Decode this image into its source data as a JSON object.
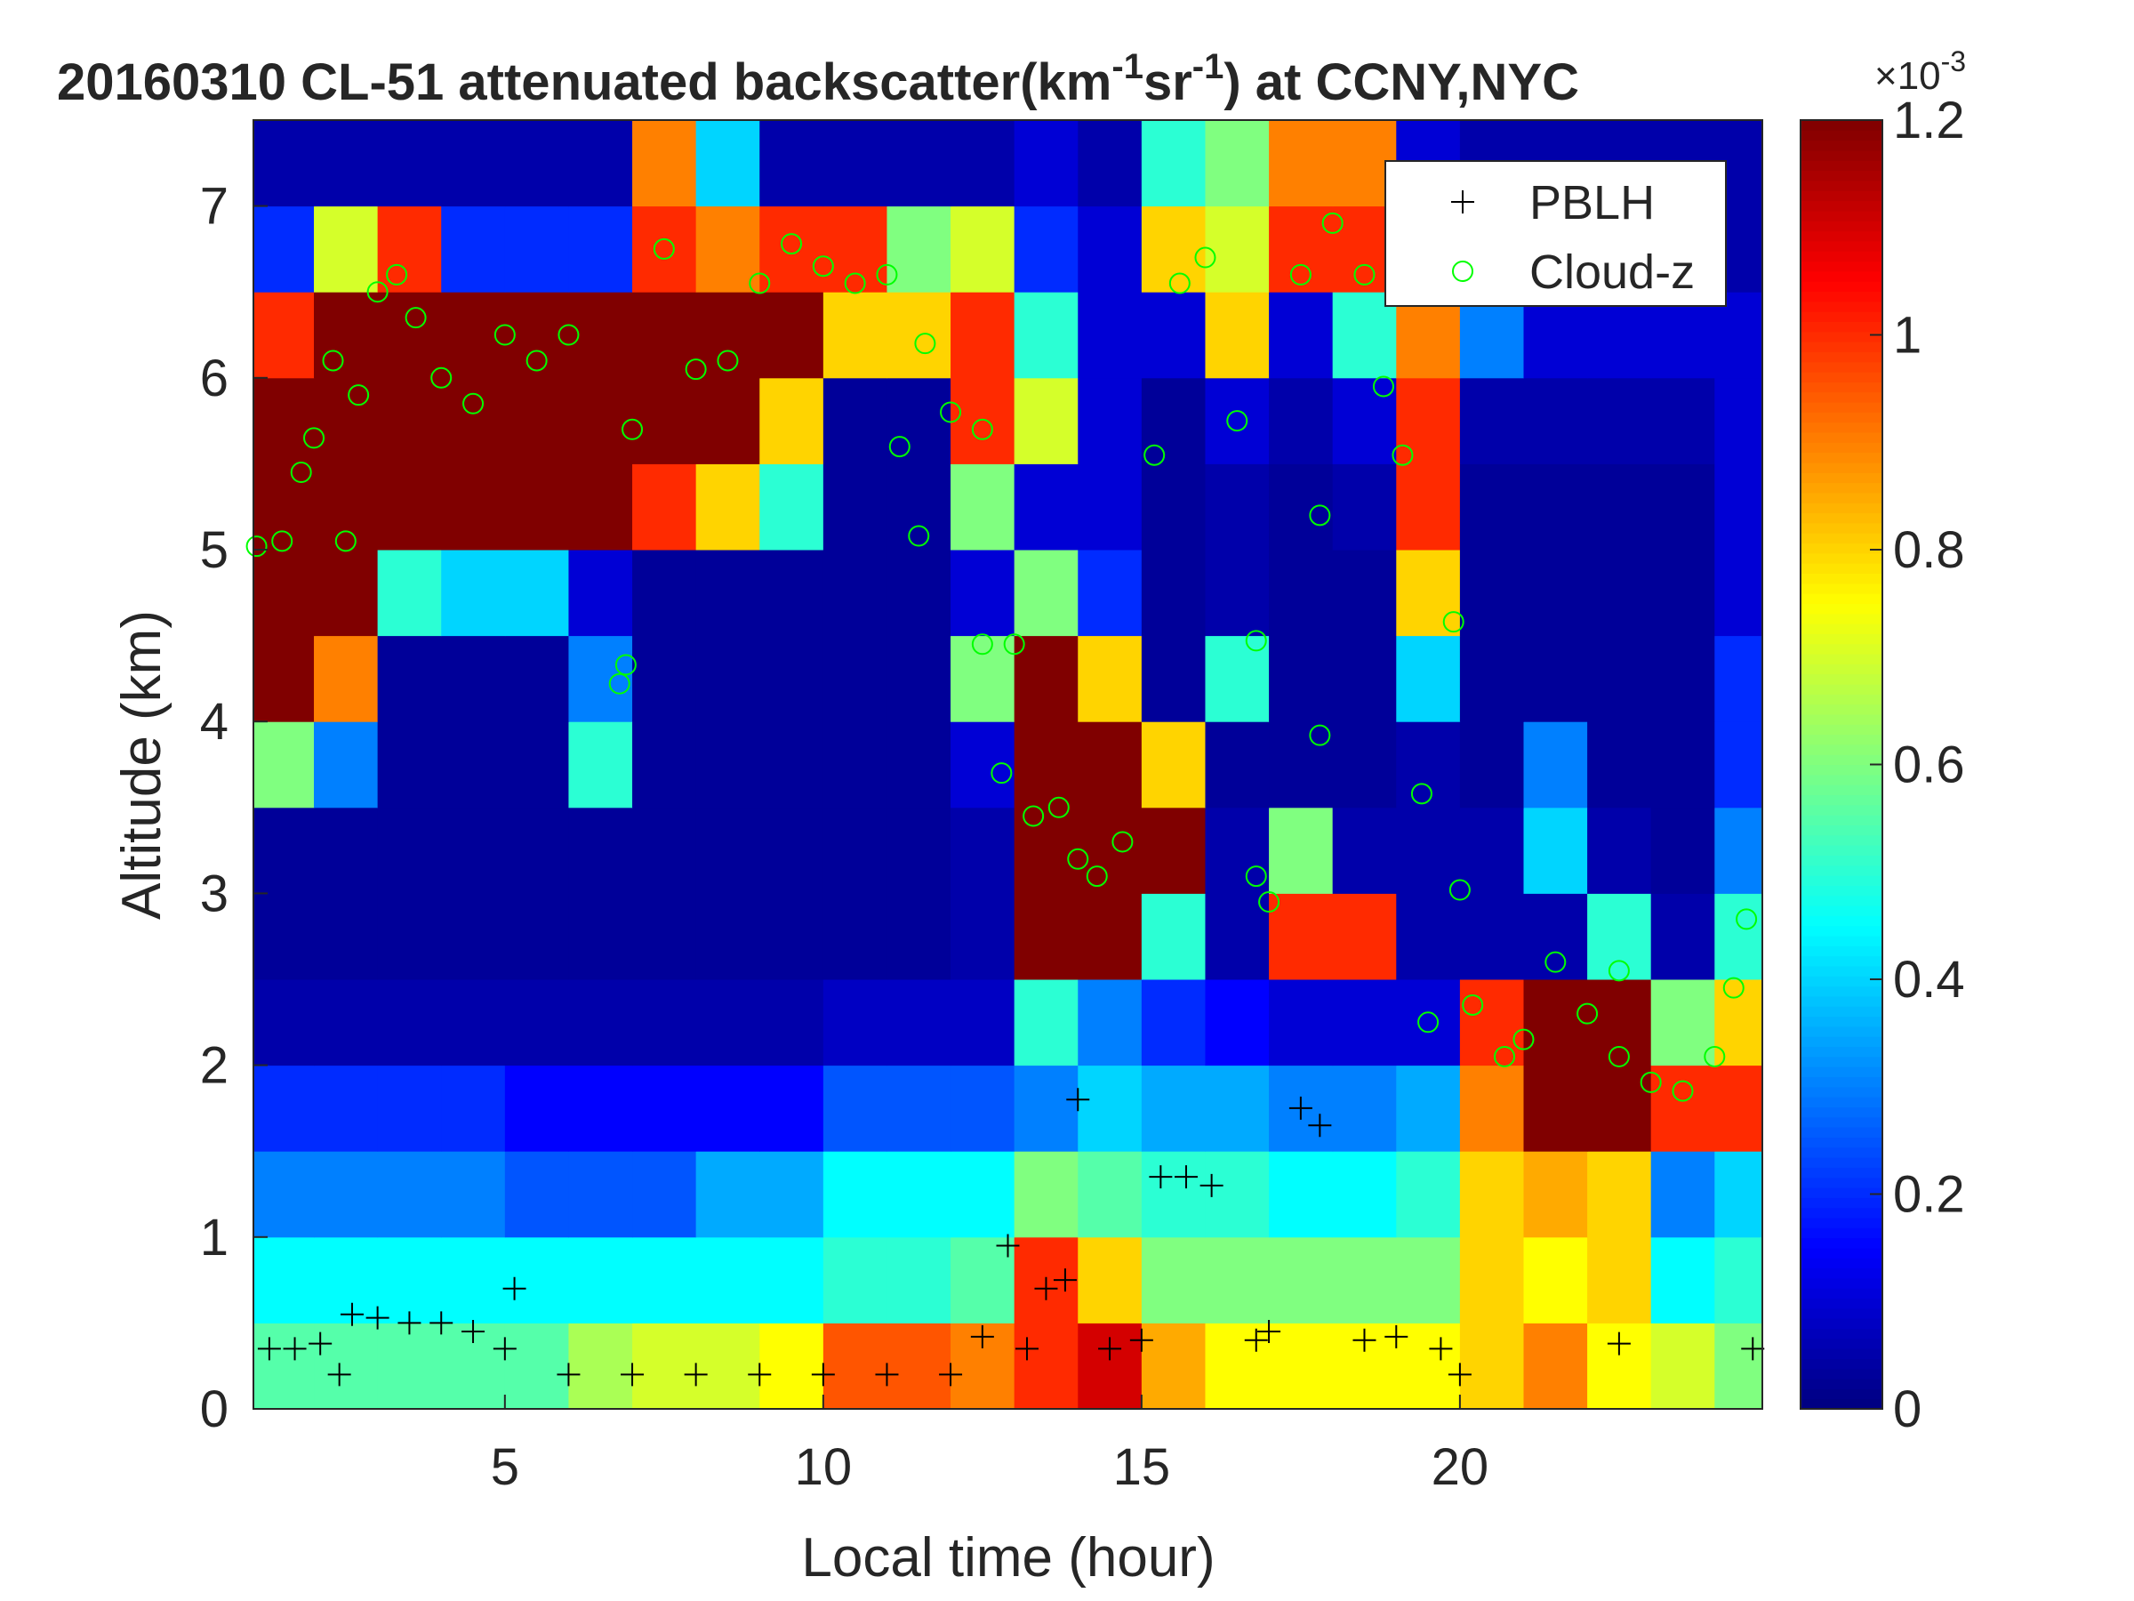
{
  "chart_data": {
    "type": "heatmap",
    "title": [
      "20160310  CL-51 attenuated backscatter(km",
      "-1",
      "sr",
      "-1",
      ") at CCNY,NYC"
    ],
    "xlabel": "Local time (hour)",
    "ylabel": "Altitude (km)",
    "xlim": [
      1.05,
      24.75
    ],
    "xticks": [
      5,
      10,
      15,
      20
    ],
    "ylim": [
      0,
      7.5
    ],
    "yticks": [
      0,
      1,
      2,
      3,
      4,
      5,
      6,
      7
    ],
    "colormap": "jet",
    "clim": [
      0,
      1.2
    ],
    "cticks": [
      0,
      0.2,
      0.4,
      0.6,
      0.8,
      1,
      1.2
    ],
    "colorbar_label": [
      "×10",
      "-3"
    ],
    "legend": "upper right",
    "x": [
      1.5,
      2.5,
      3.5,
      4.5,
      5.5,
      6.5,
      7.5,
      8.5,
      9.5,
      10.5,
      11.5,
      12.5,
      13.5,
      14.5,
      15.5,
      16.5,
      17.5,
      18.5,
      19.5,
      20.5,
      21.5,
      22.5,
      23.5,
      24.5
    ],
    "y": [
      0.25,
      0.75,
      1.25,
      1.75,
      2.25,
      2.75,
      3.25,
      3.75,
      4.25,
      4.75,
      5.25,
      5.75,
      6.25,
      6.75,
      7.25
    ],
    "z": [
      [
        0.55,
        0.55,
        0.55,
        0.55,
        0.55,
        0.65,
        0.7,
        0.7,
        0.75,
        0.95,
        0.95,
        0.9,
        1.0,
        1.1,
        0.85,
        0.75,
        0.75,
        0.75,
        0.75,
        0.8,
        0.9,
        0.75,
        0.7,
        0.6
      ],
      [
        0.45,
        0.45,
        0.45,
        0.45,
        0.45,
        0.45,
        0.45,
        0.45,
        0.45,
        0.5,
        0.5,
        0.55,
        1.0,
        0.8,
        0.6,
        0.6,
        0.6,
        0.6,
        0.6,
        0.8,
        0.75,
        0.8,
        0.45,
        0.5
      ],
      [
        0.3,
        0.3,
        0.3,
        0.3,
        0.25,
        0.25,
        0.25,
        0.35,
        0.35,
        0.45,
        0.45,
        0.45,
        0.6,
        0.55,
        0.5,
        0.5,
        0.45,
        0.45,
        0.5,
        0.8,
        0.85,
        0.8,
        0.3,
        0.4
      ],
      [
        0.2,
        0.2,
        0.2,
        0.2,
        0.15,
        0.15,
        0.15,
        0.15,
        0.15,
        0.25,
        0.25,
        0.25,
        0.3,
        0.4,
        0.35,
        0.35,
        0.3,
        0.3,
        0.35,
        0.9,
        1.2,
        1.2,
        1.0,
        1.0
      ],
      [
        0.05,
        0.05,
        0.05,
        0.05,
        0.05,
        0.05,
        0.05,
        0.05,
        0.05,
        0.08,
        0.08,
        0.08,
        0.5,
        0.3,
        0.2,
        0.15,
        0.1,
        0.1,
        0.1,
        1.0,
        1.2,
        1.2,
        0.6,
        0.8
      ],
      [
        0.03,
        0.03,
        0.03,
        0.03,
        0.03,
        0.03,
        0.03,
        0.03,
        0.03,
        0.03,
        0.03,
        0.05,
        1.2,
        1.2,
        0.5,
        0.05,
        1.0,
        1.0,
        0.05,
        0.05,
        0.05,
        0.5,
        0.05,
        0.5
      ],
      [
        0.03,
        0.03,
        0.03,
        0.03,
        0.03,
        0.03,
        0.03,
        0.03,
        0.03,
        0.03,
        0.03,
        0.05,
        1.2,
        1.2,
        1.2,
        0.05,
        0.6,
        0.05,
        0.05,
        0.05,
        0.4,
        0.05,
        0.03,
        0.3
      ],
      [
        0.6,
        0.3,
        0.03,
        0.03,
        0.03,
        0.5,
        0.03,
        0.03,
        0.03,
        0.03,
        0.03,
        0.1,
        1.2,
        1.2,
        0.8,
        0.03,
        0.03,
        0.03,
        0.05,
        0.03,
        0.3,
        0.03,
        0.03,
        0.2
      ],
      [
        1.2,
        0.9,
        0.03,
        0.03,
        0.03,
        0.3,
        0.03,
        0.03,
        0.03,
        0.03,
        0.03,
        0.6,
        1.2,
        0.8,
        0.03,
        0.5,
        0.03,
        0.03,
        0.4,
        0.03,
        0.03,
        0.03,
        0.03,
        0.2
      ],
      [
        1.2,
        1.2,
        0.5,
        0.4,
        0.4,
        0.1,
        0.03,
        0.03,
        0.03,
        0.03,
        0.03,
        0.1,
        0.6,
        0.2,
        0.03,
        0.05,
        0.03,
        0.03,
        0.8,
        0.03,
        0.03,
        0.03,
        0.03,
        0.1
      ],
      [
        1.2,
        1.2,
        1.2,
        1.2,
        1.2,
        1.2,
        1.0,
        0.8,
        0.5,
        0.03,
        0.03,
        0.6,
        0.1,
        0.1,
        0.03,
        0.05,
        0.03,
        0.05,
        1.0,
        0.03,
        0.03,
        0.03,
        0.03,
        0.1
      ],
      [
        1.2,
        1.2,
        1.2,
        1.2,
        1.2,
        1.2,
        1.2,
        1.2,
        0.8,
        0.03,
        0.03,
        1.0,
        0.7,
        0.1,
        0.03,
        0.1,
        0.05,
        0.1,
        1.0,
        0.05,
        0.05,
        0.05,
        0.05,
        0.1
      ],
      [
        1.0,
        1.2,
        1.2,
        1.2,
        1.2,
        1.2,
        1.2,
        1.2,
        1.2,
        0.8,
        0.8,
        1.0,
        0.5,
        0.1,
        0.1,
        0.8,
        0.1,
        0.5,
        0.9,
        0.3,
        0.1,
        0.1,
        0.1,
        0.1
      ],
      [
        0.2,
        0.7,
        1.0,
        0.2,
        0.2,
        0.2,
        1.0,
        0.9,
        1.0,
        1.0,
        0.6,
        0.7,
        0.2,
        0.1,
        0.8,
        0.7,
        1.0,
        1.0,
        0.3,
        0.05,
        0.05,
        0.05,
        0.05,
        0.05
      ],
      [
        0.05,
        0.05,
        0.05,
        0.05,
        0.05,
        0.05,
        0.9,
        0.4,
        0.05,
        0.05,
        0.05,
        0.05,
        0.1,
        0.05,
        0.5,
        0.6,
        0.9,
        0.9,
        0.1,
        0.05,
        0.05,
        0.05,
        0.05,
        0.05
      ]
    ],
    "series": [
      {
        "name": "PBLH",
        "color": "#000000",
        "marker": "plus",
        "x": [
          1.3,
          1.7,
          2.1,
          2.4,
          2.6,
          3,
          3.5,
          4,
          4.5,
          5,
          5.15,
          6,
          7,
          8,
          9,
          10,
          11,
          12,
          12.5,
          12.9,
          13.2,
          13.5,
          13.8,
          14,
          14.5,
          15,
          15.3,
          15.7,
          16.1,
          16.8,
          17,
          17.5,
          17.8,
          18.5,
          19,
          19.7,
          20,
          22.5,
          24.6
        ],
        "y": [
          0.35,
          0.35,
          0.38,
          0.2,
          0.55,
          0.53,
          0.5,
          0.5,
          0.45,
          0.35,
          0.7,
          0.2,
          0.2,
          0.2,
          0.2,
          0.2,
          0.2,
          0.2,
          0.42,
          0.95,
          0.35,
          0.7,
          0.75,
          1.8,
          0.35,
          0.4,
          1.35,
          1.35,
          1.3,
          0.4,
          0.45,
          1.75,
          1.65,
          0.4,
          0.42,
          0.35,
          0.2,
          0.38,
          0.35
        ]
      },
      {
        "name": "Cloud-z",
        "color": "#00ff00",
        "marker": "circle",
        "x": [
          1.1,
          1.5,
          1.8,
          2,
          2.3,
          2.5,
          2.7,
          3,
          3.3,
          3.6,
          4,
          4.5,
          5,
          5.5,
          6,
          6.8,
          6.9,
          7,
          7.5,
          8,
          8.5,
          9,
          9.5,
          10,
          10.5,
          11,
          11.2,
          11.5,
          11.6,
          12,
          12.5,
          12.5,
          12.8,
          13,
          13.3,
          13.7,
          14,
          14.3,
          14.7,
          15.2,
          15.6,
          16,
          16.5,
          16.8,
          16.8,
          17,
          17.5,
          17.8,
          17.8,
          18,
          18.5,
          18.8,
          19.1,
          19.4,
          19.5,
          19.9,
          20,
          20.2,
          20.7,
          21,
          21.5,
          22,
          22.5,
          22.5,
          23,
          23.5,
          24,
          24.3,
          24.5
        ],
        "y": [
          5.02,
          5.05,
          5.45,
          5.65,
          6.1,
          5.05,
          5.9,
          6.5,
          6.6,
          6.35,
          6.0,
          5.85,
          6.25,
          6.1,
          6.25,
          4.22,
          4.33,
          5.7,
          6.75,
          6.05,
          6.1,
          6.55,
          6.78,
          6.65,
          6.55,
          6.6,
          5.6,
          5.08,
          6.2,
          5.8,
          5.7,
          4.45,
          3.7,
          4.45,
          3.45,
          3.5,
          3.2,
          3.1,
          3.3,
          5.55,
          6.55,
          6.7,
          5.75,
          4.47,
          3.1,
          2.95,
          6.6,
          5.2,
          3.92,
          6.9,
          6.6,
          5.95,
          5.55,
          3.58,
          2.25,
          4.58,
          3.02,
          2.35,
          2.05,
          2.15,
          2.6,
          2.3,
          2.55,
          2.05,
          1.9,
          1.85,
          2.05,
          2.45,
          2.85
        ]
      }
    ]
  }
}
